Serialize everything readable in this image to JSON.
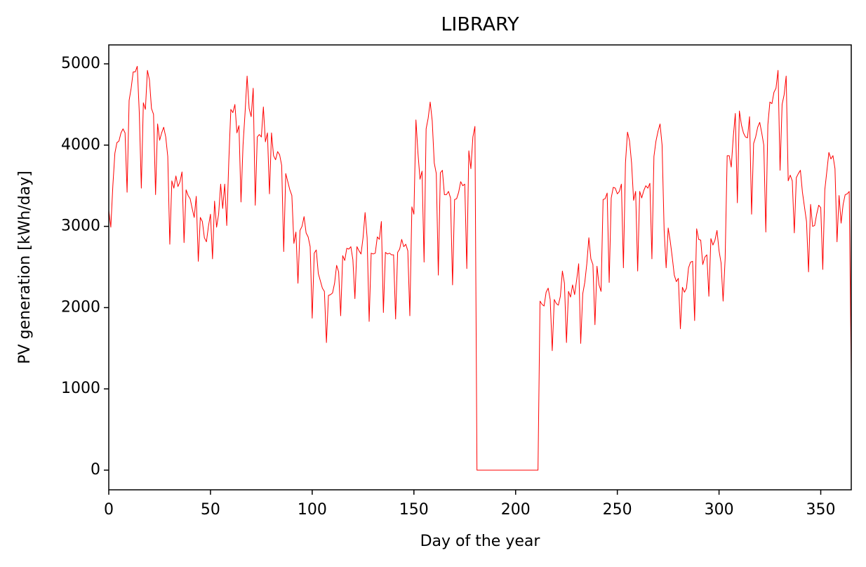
{
  "chart_data": {
    "type": "line",
    "title": "LIBRARY",
    "x_label": "Day of the year",
    "y_label": "PV generation [kWh/day]",
    "xlim": [
      0,
      365
    ],
    "ylim": [
      -242,
      5233
    ],
    "xticks": [
      0,
      50,
      100,
      150,
      200,
      250,
      300,
      350
    ],
    "yticks": [
      0,
      1000,
      2000,
      3000,
      4000,
      5000
    ],
    "grid": false,
    "x": [
      0,
      1,
      2,
      3,
      4,
      5,
      6,
      7,
      8,
      9,
      10,
      11,
      12,
      13,
      14,
      15,
      16,
      17,
      18,
      19,
      20,
      21,
      22,
      23,
      24,
      25,
      26,
      27,
      28,
      29,
      30,
      31,
      32,
      33,
      34,
      35,
      36,
      37,
      38,
      39,
      40,
      41,
      42,
      43,
      44,
      45,
      46,
      47,
      48,
      49,
      50,
      51,
      52,
      53,
      54,
      55,
      56,
      57,
      58,
      59,
      60,
      61,
      62,
      63,
      64,
      65,
      66,
      67,
      68,
      69,
      70,
      71,
      72,
      73,
      74,
      75,
      76,
      77,
      78,
      79,
      80,
      81,
      82,
      83,
      84,
      85,
      86,
      87,
      88,
      89,
      90,
      91,
      92,
      93,
      94,
      95,
      96,
      97,
      98,
      99,
      100,
      101,
      102,
      103,
      104,
      105,
      106,
      107,
      108,
      109,
      110,
      111,
      112,
      113,
      114,
      115,
      116,
      117,
      118,
      119,
      120,
      121,
      122,
      123,
      124,
      125,
      126,
      127,
      128,
      129,
      130,
      131,
      132,
      133,
      134,
      135,
      136,
      137,
      138,
      139,
      140,
      141,
      142,
      143,
      144,
      145,
      146,
      147,
      148,
      149,
      150,
      151,
      152,
      153,
      154,
      155,
      156,
      157,
      158,
      159,
      160,
      161,
      162,
      163,
      164,
      165,
      166,
      167,
      168,
      169,
      170,
      171,
      172,
      173,
      174,
      175,
      176,
      177,
      178,
      179,
      180,
      181,
      182,
      183,
      184,
      185,
      186,
      187,
      188,
      189,
      190,
      191,
      192,
      193,
      194,
      195,
      196,
      197,
      198,
      199,
      200,
      201,
      202,
      203,
      204,
      205,
      206,
      207,
      208,
      209,
      210,
      211,
      212,
      213,
      214,
      215,
      216,
      217,
      218,
      219,
      220,
      221,
      222,
      223,
      224,
      225,
      226,
      227,
      228,
      229,
      230,
      231,
      232,
      233,
      234,
      235,
      236,
      237,
      238,
      239,
      240,
      241,
      242,
      243,
      244,
      245,
      246,
      247,
      248,
      249,
      250,
      251,
      252,
      253,
      254,
      255,
      256,
      257,
      258,
      259,
      260,
      261,
      262,
      263,
      264,
      265,
      266,
      267,
      268,
      269,
      270,
      271,
      272,
      273,
      274,
      275,
      276,
      277,
      278,
      279,
      280,
      281,
      282,
      283,
      284,
      285,
      286,
      287,
      288,
      289,
      290,
      291,
      292,
      293,
      294,
      295,
      296,
      297,
      298,
      299,
      300,
      301,
      302,
      303,
      304,
      305,
      306,
      307,
      308,
      309,
      310,
      311,
      312,
      313,
      314,
      315,
      316,
      317,
      318,
      319,
      320,
      321,
      322,
      323,
      324,
      325,
      326,
      327,
      328,
      329,
      330,
      331,
      332,
      333,
      334,
      335,
      336,
      337,
      338,
      339,
      340,
      341,
      342,
      343,
      344,
      345,
      346,
      347,
      348,
      349,
      350,
      351,
      352,
      353,
      354,
      355,
      356,
      357,
      358,
      359,
      360,
      361,
      362,
      363,
      364,
      365
    ],
    "series": [
      {
        "color": "#ff0000",
        "values": [
          3200,
          2990,
          3500,
          3900,
          4030,
          4050,
          4150,
          4200,
          4150,
          3420,
          4550,
          4700,
          4900,
          4900,
          4970,
          4400,
          3470,
          4520,
          4440,
          4920,
          4800,
          4450,
          4380,
          3390,
          4260,
          4060,
          4150,
          4220,
          4100,
          3860,
          2780,
          3560,
          3470,
          3620,
          3490,
          3550,
          3670,
          2800,
          3450,
          3380,
          3340,
          3220,
          3110,
          3370,
          2570,
          3110,
          3060,
          2860,
          2810,
          3000,
          3150,
          2600,
          3310,
          2990,
          3150,
          3520,
          3220,
          3520,
          3010,
          3800,
          4440,
          4400,
          4500,
          4150,
          4240,
          3300,
          4000,
          4400,
          4850,
          4450,
          4350,
          4700,
          3260,
          4100,
          4130,
          4100,
          4470,
          4040,
          4150,
          3400,
          4150,
          3870,
          3820,
          3920,
          3880,
          3750,
          2690,
          3650,
          3550,
          3450,
          3380,
          2790,
          2930,
          2300,
          2950,
          3000,
          3120,
          2920,
          2870,
          2750,
          1870,
          2670,
          2710,
          2420,
          2330,
          2240,
          2200,
          1570,
          2150,
          2160,
          2180,
          2300,
          2520,
          2440,
          1900,
          2640,
          2580,
          2730,
          2720,
          2750,
          2590,
          2110,
          2750,
          2700,
          2660,
          2860,
          3170,
          2860,
          1830,
          2670,
          2660,
          2670,
          2870,
          2840,
          3060,
          1940,
          2680,
          2660,
          2670,
          2650,
          2650,
          1860,
          2680,
          2720,
          2840,
          2750,
          2780,
          2700,
          1900,
          3240,
          3150,
          4310,
          3900,
          3580,
          3680,
          2560,
          4200,
          4330,
          4530,
          4300,
          3780,
          3650,
          2400,
          3660,
          3690,
          3390,
          3390,
          3430,
          3350,
          2280,
          3330,
          3340,
          3420,
          3550,
          3500,
          3520,
          2480,
          3930,
          3710,
          4100,
          4230,
          0,
          0,
          0,
          0,
          0,
          0,
          0,
          0,
          0,
          0,
          0,
          0,
          0,
          0,
          0,
          0,
          0,
          0,
          0,
          0,
          0,
          0,
          0,
          0,
          0,
          0,
          0,
          0,
          0,
          0,
          0,
          2080,
          2040,
          2020,
          2190,
          2240,
          2100,
          1470,
          2100,
          2050,
          2030,
          2140,
          2450,
          2300,
          1570,
          2200,
          2130,
          2280,
          2160,
          2340,
          2540,
          1560,
          2170,
          2310,
          2540,
          2860,
          2600,
          2530,
          1790,
          2510,
          2280,
          2200,
          3330,
          3340,
          3410,
          2310,
          3350,
          3480,
          3470,
          3400,
          3430,
          3520,
          2490,
          3780,
          4160,
          4050,
          3780,
          3320,
          3430,
          2450,
          3430,
          3350,
          3440,
          3500,
          3470,
          3530,
          2600,
          3860,
          4050,
          4170,
          4260,
          4000,
          2960,
          2490,
          2980,
          2820,
          2620,
          2400,
          2320,
          2360,
          1740,
          2250,
          2190,
          2240,
          2490,
          2560,
          2570,
          1840,
          2970,
          2840,
          2830,
          2530,
          2620,
          2650,
          2140,
          2850,
          2770,
          2830,
          2950,
          2700,
          2550,
          2080,
          2600,
          3870,
          3870,
          3730,
          4100,
          4390,
          3290,
          4420,
          4250,
          4150,
          4100,
          4090,
          4350,
          3150,
          4020,
          4100,
          4220,
          4280,
          4150,
          4000,
          2930,
          4250,
          4530,
          4510,
          4650,
          4700,
          4920,
          3690,
          4500,
          4620,
          4850,
          3560,
          3630,
          3560,
          2920,
          3600,
          3650,
          3690,
          3420,
          3240,
          3060,
          2440,
          3270,
          3000,
          3010,
          3150,
          3260,
          3230,
          2470,
          3450,
          3680,
          3910,
          3830,
          3870,
          3710,
          2810,
          3380,
          3040,
          3270,
          3390,
          3400,
          3430,
          1120
        ]
      }
    ]
  }
}
